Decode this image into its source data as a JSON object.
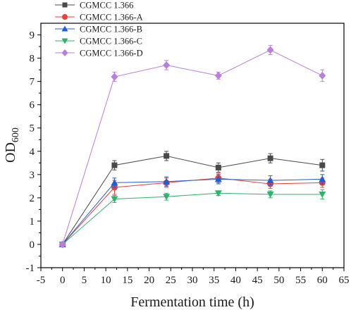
{
  "chart_data": {
    "type": "line",
    "xlabel": "Fermentation time (h)",
    "ylabel_main": "OD",
    "ylabel_sub": "600",
    "xlim": [
      -5,
      65
    ],
    "ylim": [
      -1,
      9.5
    ],
    "xticks": [
      "-5",
      "0",
      "5",
      "10",
      "15",
      "20",
      "25",
      "30",
      "35",
      "40",
      "45",
      "50",
      "55",
      "60",
      "65"
    ],
    "yticks": [
      "-1",
      "0",
      "1",
      "2",
      "3",
      "4",
      "5",
      "6",
      "7",
      "8",
      "9"
    ],
    "x": [
      0,
      12,
      24,
      36,
      48,
      60
    ],
    "legend_position": "top-left",
    "series": [
      {
        "name": "CGMCC 1.366",
        "marker": "square",
        "color": "#4a4a4a",
        "values": [
          0.0,
          3.4,
          3.8,
          3.3,
          3.7,
          3.4
        ],
        "errors": [
          0.1,
          0.2,
          0.2,
          0.2,
          0.2,
          0.25
        ]
      },
      {
        "name": "CGMCC 1.366-A",
        "marker": "circle",
        "color": "#e8413c",
        "values": [
          0.0,
          2.45,
          2.65,
          2.85,
          2.6,
          2.65
        ],
        "errors": [
          0.1,
          0.3,
          0.2,
          0.2,
          0.2,
          0.2
        ]
      },
      {
        "name": "CGMCC 1.366-B",
        "marker": "triangle-up",
        "color": "#1f5fd6",
        "values": [
          0.0,
          2.65,
          2.7,
          2.8,
          2.75,
          2.8
        ],
        "errors": [
          0.1,
          0.2,
          0.2,
          0.2,
          0.2,
          0.2
        ]
      },
      {
        "name": "CGMCC 1.366-C",
        "marker": "triangle-down",
        "color": "#2fb36a",
        "values": [
          0.0,
          1.95,
          2.05,
          2.2,
          2.15,
          2.15
        ],
        "errors": [
          0.1,
          0.15,
          0.15,
          0.1,
          0.15,
          0.2
        ]
      },
      {
        "name": "CGMCC 1.366-D",
        "marker": "diamond",
        "color": "#b87ee0",
        "values": [
          0.0,
          7.2,
          7.7,
          7.25,
          8.35,
          7.25
        ],
        "errors": [
          0.1,
          0.2,
          0.2,
          0.15,
          0.2,
          0.25
        ]
      }
    ]
  }
}
